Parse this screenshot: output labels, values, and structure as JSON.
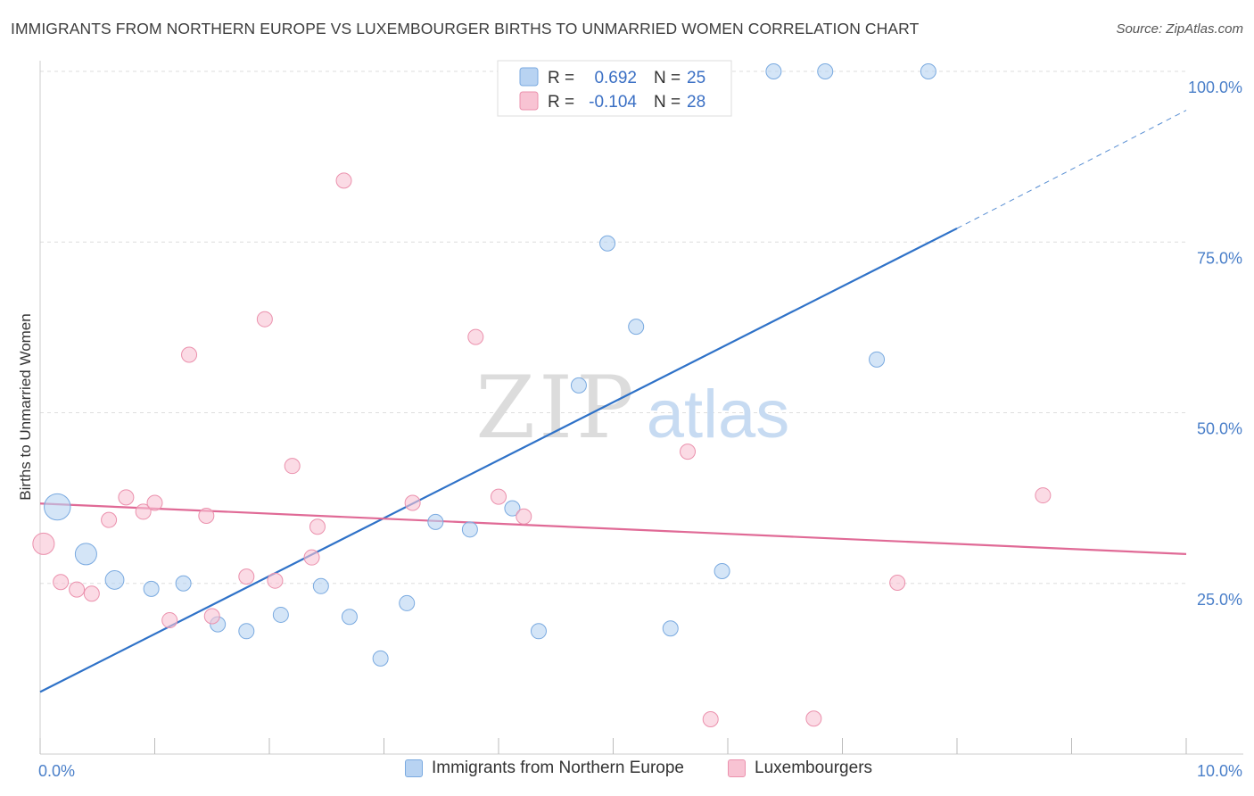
{
  "title": "IMMIGRANTS FROM NORTHERN EUROPE VS LUXEMBOURGER BIRTHS TO UNMARRIED WOMEN CORRELATION CHART",
  "source": "Source: ZipAtlas.com",
  "watermark": {
    "zip": "ZIP",
    "atlas": "atlas"
  },
  "colors": {
    "blue_fill": "#b8d3f2",
    "blue_stroke": "#7aaae0",
    "blue_line": "#2f72c8",
    "pink_fill": "#f8c3d3",
    "pink_stroke": "#eb91ad",
    "pink_line": "#e06a96",
    "tick": "#4a7fc9",
    "grid": "#dddddd"
  },
  "legend": {
    "rows": [
      {
        "r_label": "R =",
        "r_value": "0.692",
        "n_label": "N =",
        "n_value": "25"
      },
      {
        "r_label": "R =",
        "r_value": "-0.104",
        "n_label": "N =",
        "n_value": "28"
      }
    ]
  },
  "bottom_legend": {
    "series1": "Immigrants from Northern Europe",
    "series2": "Luxembourgers"
  },
  "chart_data": {
    "type": "scatter",
    "title": "IMMIGRANTS FROM NORTHERN EUROPE VS LUXEMBOURGER BIRTHS TO UNMARRIED WOMEN CORRELATION CHART",
    "xlabel": "",
    "ylabel": "Births to Unmarried Women",
    "xlim": [
      0,
      10
    ],
    "ylim": [
      0,
      100
    ],
    "x_tick_labels": [
      {
        "value": 0,
        "label": "0.0%"
      },
      {
        "value": 10,
        "label": "10.0%"
      }
    ],
    "y_tick_labels": [
      {
        "value": 25,
        "label": "25.0%"
      },
      {
        "value": 50,
        "label": "50.0%"
      },
      {
        "value": 75,
        "label": "75.0%"
      },
      {
        "value": 100,
        "label": "100.0%"
      }
    ],
    "series": [
      {
        "name": "Immigrants from Northern Europe",
        "color": "blue",
        "r": 0.692,
        "n": 25,
        "trend": {
          "x0": 0,
          "y0": 9.1,
          "x1": 8.0,
          "y1": 77.0,
          "dash_to_x": 10.0,
          "dash_to_y": 94.3
        },
        "points": [
          {
            "x": 0.15,
            "y": 36.2,
            "size": 3
          },
          {
            "x": 0.4,
            "y": 29.3,
            "size": 2
          },
          {
            "x": 0.65,
            "y": 25.5,
            "size": 1.5
          },
          {
            "x": 0.97,
            "y": 24.2,
            "size": 1
          },
          {
            "x": 1.25,
            "y": 25.0,
            "size": 1
          },
          {
            "x": 1.55,
            "y": 19.0,
            "size": 1
          },
          {
            "x": 1.8,
            "y": 18.0,
            "size": 1
          },
          {
            "x": 2.1,
            "y": 20.4,
            "size": 1
          },
          {
            "x": 2.45,
            "y": 24.6,
            "size": 1
          },
          {
            "x": 2.7,
            "y": 20.1,
            "size": 1
          },
          {
            "x": 2.97,
            "y": 14.0,
            "size": 1
          },
          {
            "x": 3.2,
            "y": 22.1,
            "size": 1
          },
          {
            "x": 3.45,
            "y": 34.0,
            "size": 1
          },
          {
            "x": 3.75,
            "y": 32.9,
            "size": 1
          },
          {
            "x": 4.12,
            "y": 36.0,
            "size": 1
          },
          {
            "x": 4.35,
            "y": 18.0,
            "size": 1
          },
          {
            "x": 4.7,
            "y": 54.0,
            "size": 1
          },
          {
            "x": 4.95,
            "y": 74.8,
            "size": 1
          },
          {
            "x": 5.2,
            "y": 62.6,
            "size": 1
          },
          {
            "x": 5.5,
            "y": 18.4,
            "size": 1
          },
          {
            "x": 5.95,
            "y": 26.8,
            "size": 1
          },
          {
            "x": 6.4,
            "y": 100.0,
            "size": 1
          },
          {
            "x": 6.85,
            "y": 100.0,
            "size": 1
          },
          {
            "x": 7.3,
            "y": 57.8,
            "size": 1
          },
          {
            "x": 7.75,
            "y": 100.0,
            "size": 1
          }
        ]
      },
      {
        "name": "Luxembourgers",
        "color": "pink",
        "r": -0.104,
        "n": 28,
        "trend": {
          "x0": 0,
          "y0": 36.7,
          "x1": 10.0,
          "y1": 29.3
        },
        "points": [
          {
            "x": 0.03,
            "y": 30.8,
            "size": 2
          },
          {
            "x": 0.18,
            "y": 25.2,
            "size": 1
          },
          {
            "x": 0.32,
            "y": 24.1,
            "size": 1
          },
          {
            "x": 0.45,
            "y": 23.5,
            "size": 1
          },
          {
            "x": 0.6,
            "y": 34.3,
            "size": 1
          },
          {
            "x": 0.75,
            "y": 37.6,
            "size": 1
          },
          {
            "x": 0.9,
            "y": 35.5,
            "size": 1
          },
          {
            "x": 1.0,
            "y": 36.8,
            "size": 1
          },
          {
            "x": 1.13,
            "y": 19.6,
            "size": 1
          },
          {
            "x": 1.3,
            "y": 58.5,
            "size": 1
          },
          {
            "x": 1.45,
            "y": 34.9,
            "size": 1
          },
          {
            "x": 1.5,
            "y": 20.2,
            "size": 1
          },
          {
            "x": 1.8,
            "y": 26.0,
            "size": 1
          },
          {
            "x": 1.96,
            "y": 63.7,
            "size": 1
          },
          {
            "x": 2.05,
            "y": 25.4,
            "size": 1
          },
          {
            "x": 2.2,
            "y": 42.2,
            "size": 1
          },
          {
            "x": 2.37,
            "y": 28.8,
            "size": 1
          },
          {
            "x": 2.42,
            "y": 33.3,
            "size": 1
          },
          {
            "x": 2.65,
            "y": 84.0,
            "size": 1
          },
          {
            "x": 3.25,
            "y": 36.8,
            "size": 1
          },
          {
            "x": 3.8,
            "y": 61.1,
            "size": 1
          },
          {
            "x": 4.0,
            "y": 37.7,
            "size": 1
          },
          {
            "x": 4.22,
            "y": 34.8,
            "size": 1
          },
          {
            "x": 5.65,
            "y": 44.3,
            "size": 1
          },
          {
            "x": 5.85,
            "y": 5.1,
            "size": 1
          },
          {
            "x": 6.75,
            "y": 5.2,
            "size": 1
          },
          {
            "x": 7.48,
            "y": 25.1,
            "size": 1
          },
          {
            "x": 8.75,
            "y": 37.9,
            "size": 1
          }
        ]
      }
    ],
    "legend_position": "top-center",
    "grid": true
  }
}
